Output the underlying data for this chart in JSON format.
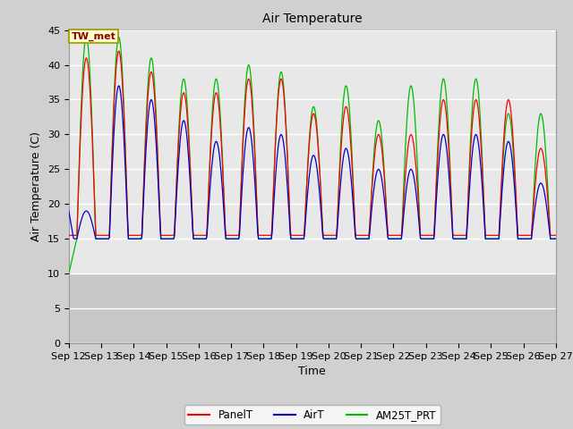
{
  "title": "Air Temperature",
  "ylabel": "Air Temperature (C)",
  "xlabel": "Time",
  "annotation": "TW_met",
  "ylim": [
    0,
    45
  ],
  "yticks": [
    0,
    5,
    10,
    15,
    20,
    25,
    30,
    35,
    40,
    45
  ],
  "n_days": 15,
  "xtick_labels": [
    "Sep 12",
    "Sep 13",
    "Sep 14",
    "Sep 15",
    "Sep 16",
    "Sep 17",
    "Sep 18",
    "Sep 19",
    "Sep 20",
    "Sep 21",
    "Sep 22",
    "Sep 23",
    "Sep 24",
    "Sep 25",
    "Sep 26",
    "Sep 27"
  ],
  "line_colors": {
    "PanelT": "#ff0000",
    "AirT": "#0000cc",
    "AM25T_PRT": "#00bb00"
  },
  "fig_facecolor": "#d0d0d0",
  "plot_bg_upper": "#e8e8e8",
  "plot_bg_lower": "#c8c8c8",
  "grid_color": "#ffffff",
  "title_fontsize": 10,
  "axis_label_fontsize": 9,
  "tick_fontsize": 8,
  "panel_peaks": [
    41,
    42,
    39,
    36,
    36,
    38,
    38,
    33,
    34,
    30,
    30,
    35,
    35,
    35,
    28
  ],
  "air_peaks": [
    19,
    37,
    35,
    32,
    29,
    31,
    30,
    27,
    28,
    25,
    25,
    30,
    30,
    29,
    23
  ],
  "am25_peaks": [
    44,
    44,
    41,
    38,
    38,
    40,
    39,
    34,
    37,
    32,
    37,
    38,
    38,
    33,
    33
  ],
  "night_base_panel": 15.5,
  "night_base_air": 15.0,
  "night_base_am25": 15.0
}
